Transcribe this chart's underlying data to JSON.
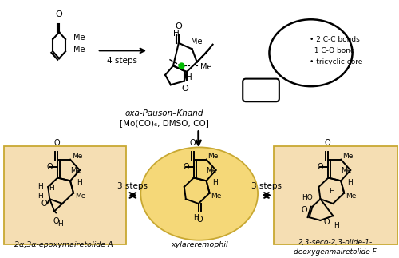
{
  "bg_color": "#ffffff",
  "highlight_yellow": "#F5DEB3",
  "highlight_yellow_center": "#F5D878",
  "fig_width": 5.0,
  "fig_height": 3.23,
  "label_left": "2α,3α-epoxymairetolide A",
  "label_center": "xylareremophil",
  "label_right": "2,3-seco-2,3-olide-1-\ndeoxygenmairetolide F",
  "arrow_text_left": "3 steps",
  "arrow_text_right": "3 steps",
  "arrow_text_top": "4 steps",
  "reagent_line1": "oxa-Pauson–Khand",
  "reagent_line2": "[Mo(CO)₆, DMSO, CO]",
  "callout_line1": "• 2 C-C bonds",
  "callout_line2": "  1 C-O bond",
  "callout_line3": "• tricyclic core"
}
